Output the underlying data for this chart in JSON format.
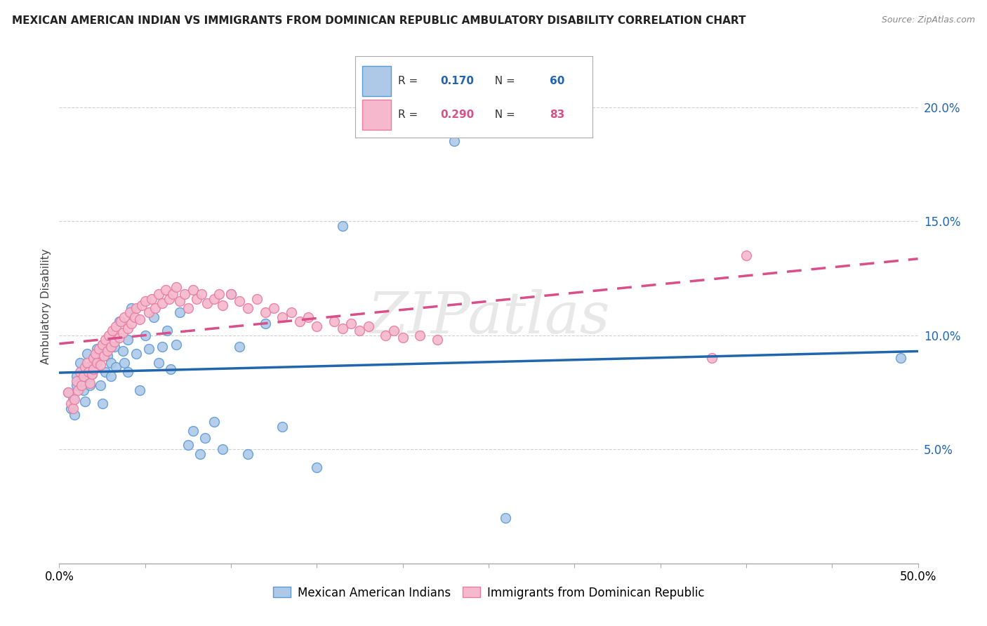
{
  "title": "MEXICAN AMERICAN INDIAN VS IMMIGRANTS FROM DOMINICAN REPUBLIC AMBULATORY DISABILITY CORRELATION CHART",
  "source": "Source: ZipAtlas.com",
  "ylabel": "Ambulatory Disability",
  "xlim": [
    0.0,
    0.5
  ],
  "ylim": [
    0.0,
    0.225
  ],
  "yticks": [
    0.05,
    0.1,
    0.15,
    0.2
  ],
  "ytick_labels": [
    "5.0%",
    "10.0%",
    "15.0%",
    "20.0%"
  ],
  "xticks": [
    0.0,
    0.05,
    0.1,
    0.15,
    0.2,
    0.25,
    0.3,
    0.35,
    0.4,
    0.45,
    0.5
  ],
  "blue_R": 0.17,
  "blue_N": 60,
  "pink_R": 0.29,
  "pink_N": 83,
  "blue_fill": "#aec9e8",
  "pink_fill": "#f5b8cc",
  "blue_edge": "#5b9bd5",
  "pink_edge": "#e87ca0",
  "blue_line": "#2166ac",
  "pink_line": "#d94f8a",
  "legend_label_blue": "Mexican American Indians",
  "legend_label_pink": "Immigrants from Dominican Republic",
  "watermark": "ZIPatlas",
  "background_color": "#ffffff",
  "grid_color": "#d0d0d0"
}
